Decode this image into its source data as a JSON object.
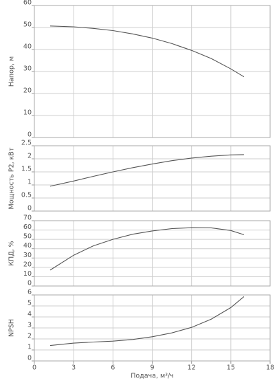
{
  "chart_data": [
    {
      "type": "line",
      "ylabel": "Напор, м",
      "color": "#555555",
      "grid": true,
      "x": [
        1.2,
        3,
        4.5,
        6,
        7.5,
        9,
        10.5,
        12,
        13.5,
        15,
        16
      ],
      "values": [
        50.7,
        50.3,
        49.6,
        48.6,
        47.1,
        45.2,
        42.7,
        39.6,
        35.9,
        31.2,
        27.6
      ],
      "xlim": [
        0,
        18
      ],
      "xticks": [
        0,
        3,
        6,
        9,
        12,
        15,
        18
      ],
      "ylim": [
        0,
        60
      ],
      "yticks": [
        0,
        10,
        20,
        30,
        40,
        50,
        60
      ]
    },
    {
      "type": "line",
      "ylabel": "Мощность P2, кВт",
      "color": "#555555",
      "grid": true,
      "x": [
        1.2,
        3,
        4.5,
        6,
        7.5,
        9,
        10.5,
        12,
        13.5,
        15,
        16
      ],
      "values": [
        0.95,
        1.15,
        1.33,
        1.5,
        1.66,
        1.8,
        1.93,
        2.03,
        2.1,
        2.15,
        2.16
      ],
      "xlim": [
        0,
        18
      ],
      "xticks": [
        0,
        3,
        6,
        9,
        12,
        15,
        18
      ],
      "ylim": [
        0,
        2.5
      ],
      "yticks": [
        0,
        0.5,
        1,
        1.5,
        2,
        2.5
      ]
    },
    {
      "type": "line",
      "ylabel": "КПД, %",
      "color": "#555555",
      "grid": true,
      "x": [
        1.2,
        3,
        4.5,
        6,
        7.5,
        9,
        10.5,
        12,
        13.5,
        15,
        16
      ],
      "values": [
        17,
        33,
        43,
        50,
        55.5,
        59,
        61.5,
        62.5,
        62.3,
        59.5,
        55
      ],
      "xlim": [
        0,
        18
      ],
      "xticks": [
        0,
        3,
        6,
        9,
        12,
        15,
        18
      ],
      "ylim": [
        0,
        70
      ],
      "yticks": [
        0,
        10,
        20,
        30,
        40,
        50,
        60,
        70
      ]
    },
    {
      "type": "line",
      "ylabel": "NPSH",
      "xlabel": "Подача, м³/ч",
      "color": "#555555",
      "grid": true,
      "x": [
        1.2,
        3,
        4.5,
        6,
        7.5,
        9,
        10.5,
        12,
        13.5,
        15,
        16
      ],
      "values": [
        1.4,
        1.62,
        1.72,
        1.8,
        1.95,
        2.2,
        2.55,
        3.05,
        3.8,
        4.85,
        5.85
      ],
      "xlim": [
        0,
        18
      ],
      "xticks": [
        0,
        3,
        6,
        9,
        12,
        15,
        18
      ],
      "ylim": [
        0,
        6
      ],
      "yticks": [
        0,
        1,
        2,
        3,
        4,
        5,
        6
      ]
    }
  ]
}
